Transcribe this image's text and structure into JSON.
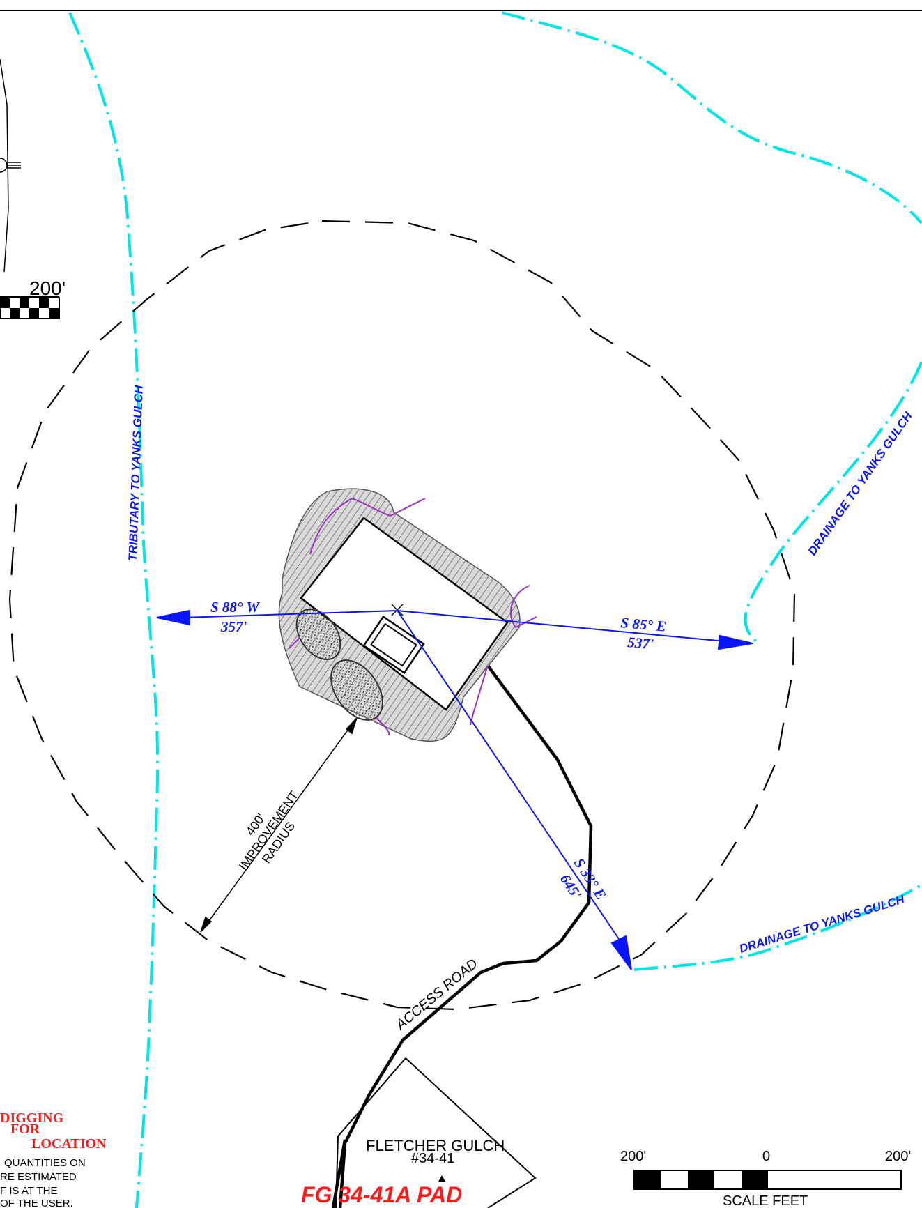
{
  "pad_name": "FG 34-41A PAD",
  "well_label_line1": "FLETCHER GULCH",
  "well_label_line2": "#34-41",
  "improvement_radius": {
    "line1": "400'",
    "line2": "IMPROVEMENT",
    "line3": "RADIUS"
  },
  "access_road_label": "ACCESS ROAD",
  "drainages": {
    "tributary": "TRIBUTARY TO YANKS GULCH",
    "drainage_upper": "DRAINAGE TO YANKS GULCH",
    "drainage_lower": "DRAINAGE TO YANKS GULCH"
  },
  "bearings": {
    "west": {
      "bearing": "S 88° W",
      "distance": "357'"
    },
    "east": {
      "bearing": "S 85° E",
      "distance": "537'"
    },
    "southeast": {
      "bearing": "S 33° E",
      "distance": "645'"
    }
  },
  "scale_bar": {
    "left": "200'",
    "center": "0",
    "right": "200'",
    "caption": "SCALE FEET"
  },
  "inset_scale_label": "200'",
  "note": {
    "heading_line1": "DIGGING",
    "heading_line2": "FOR",
    "heading_line3": "LOCATION",
    "body_line1": "QUANTITIES ON",
    "body_line2": "RE ESTIMATED",
    "body_line3": "F IS AT THE",
    "body_line4": "OF THE USER."
  },
  "colors": {
    "drainage": "#00e5e5",
    "bearing_lines": "#0a14ff",
    "pad_title": "#ff1a1a",
    "note_heading": "#ff1a1a",
    "silt_fence": "#9b2fc9",
    "radius_circle": "#000000"
  }
}
